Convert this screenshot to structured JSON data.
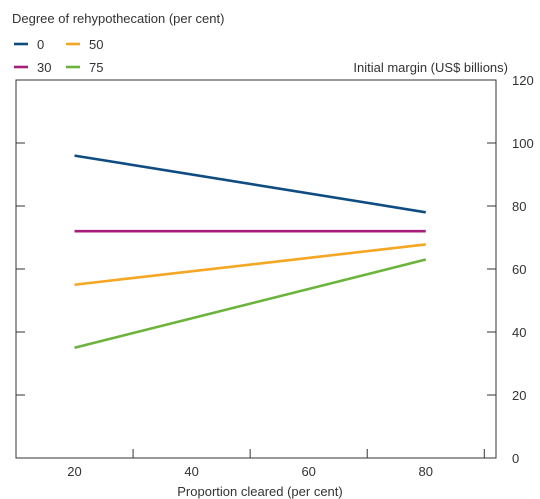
{
  "chart_data": {
    "type": "line",
    "legend_title": "Degree of rehypothecation (per cent)",
    "legend_placement": "top-left",
    "xlabel": "Proportion cleared (per cent)",
    "ylabel": "Initial margin (US$ billions)",
    "xlim": [
      10,
      92
    ],
    "ylim": [
      0,
      120
    ],
    "x_ticks": [
      20,
      40,
      60,
      80
    ],
    "y_ticks": [
      0,
      20,
      40,
      60,
      80,
      100,
      120
    ],
    "x_minor_ticks": [
      10,
      30,
      50,
      70,
      90
    ],
    "grid": false,
    "series": [
      {
        "name": "0",
        "color": "#0f4c81",
        "x": [
          20,
          80
        ],
        "y": [
          96,
          78
        ]
      },
      {
        "name": "50",
        "color": "#f5a623",
        "x": [
          20,
          80
        ],
        "y": [
          55,
          67.8
        ]
      },
      {
        "name": "30",
        "color": "#a61e7a",
        "x": [
          20,
          80
        ],
        "y": [
          72,
          72
        ]
      },
      {
        "name": "75",
        "color": "#6ab43e",
        "x": [
          20,
          80
        ],
        "y": [
          35,
          63
        ]
      }
    ],
    "legend_order": [
      "0",
      "50",
      "30",
      "75"
    ]
  }
}
